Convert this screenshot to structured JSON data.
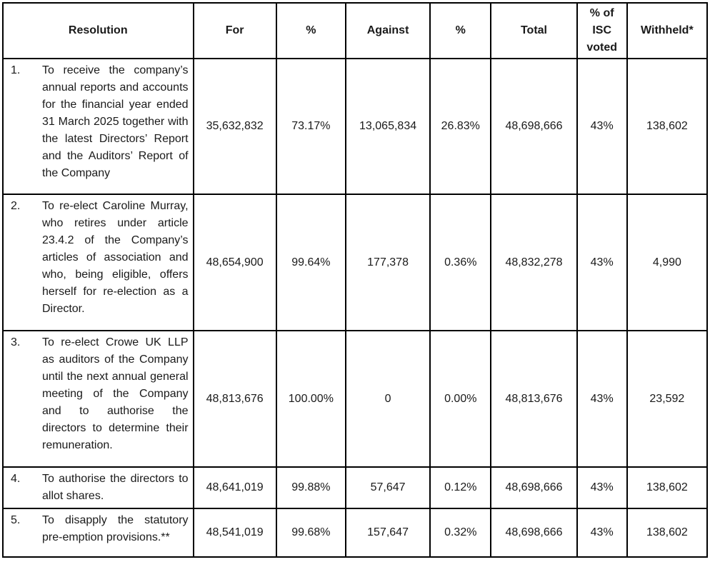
{
  "table": {
    "headers": {
      "resolution": "Resolution",
      "for": "For",
      "for_pct": "%",
      "against": "Against",
      "against_pct": "%",
      "total": "Total",
      "isc_voted": "% of ISC voted",
      "withheld": "Withheld*"
    },
    "rows": [
      {
        "num": "1.",
        "text": "To receive the company’s annual reports and accounts for the financial year ended 31 March 2025 together with the latest Directors’ Report and the Auditors’ Report of the Company",
        "for": "35,632,832",
        "for_pct": "73.17%",
        "against": "13,065,834",
        "against_pct": "26.83%",
        "total": "48,698,666",
        "isc_voted": "43%",
        "withheld": "138,602"
      },
      {
        "num": "2.",
        "text": "To re-elect Caroline Murray, who retires under article 23.4.2 of the Company’s articles of association and who, being eligible, offers herself for re-election as a Director.",
        "for": "48,654,900",
        "for_pct": "99.64%",
        "against": "177,378",
        "against_pct": "0.36%",
        "total": "48,832,278",
        "isc_voted": "43%",
        "withheld": "4,990"
      },
      {
        "num": "3.",
        "text": "To re-elect Crowe UK LLP as auditors of the Company until the next annual general meeting of the Company and to authorise the directors to determine their remuneration.",
        "for": "48,813,676",
        "for_pct": "100.00%",
        "against": "0",
        "against_pct": "0.00%",
        "total": "48,813,676",
        "isc_voted": "43%",
        "withheld": "23,592"
      },
      {
        "num": "4.",
        "text": "To authorise the directors to allot shares.",
        "for": "48,641,019",
        "for_pct": "99.88%",
        "against": "57,647",
        "against_pct": "0.12%",
        "total": "48,698,666",
        "isc_voted": "43%",
        "withheld": "138,602"
      },
      {
        "num": "5.",
        "text": "To disapply the statutory pre-emption provisions.**",
        "for": "48,541,019",
        "for_pct": "99.68%",
        "against": "157,647",
        "against_pct": "0.32%",
        "total": "48,698,666",
        "isc_voted": "43%",
        "withheld": "138,602"
      }
    ]
  }
}
